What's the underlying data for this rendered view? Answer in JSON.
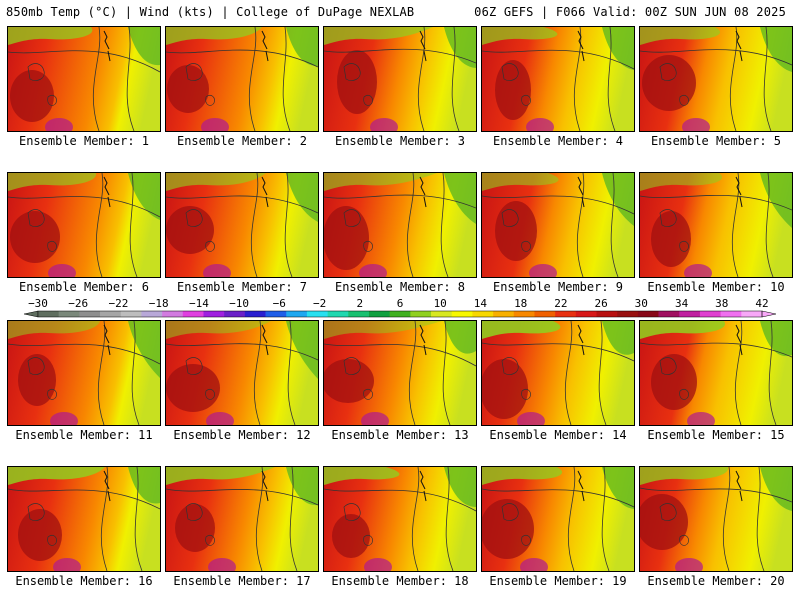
{
  "header": {
    "left": "850mb Temp (°C) | Wind (kts) | College of DuPage NEXLAB",
    "right": "06Z GEFS | F066 Valid: 00Z SUN JUN 08 2025"
  },
  "members": [
    {
      "label": "Ensemble Member: 1"
    },
    {
      "label": "Ensemble Member: 2"
    },
    {
      "label": "Ensemble Member: 3"
    },
    {
      "label": "Ensemble Member: 4"
    },
    {
      "label": "Ensemble Member: 5"
    },
    {
      "label": "Ensemble Member: 6"
    },
    {
      "label": "Ensemble Member: 7"
    },
    {
      "label": "Ensemble Member: 8"
    },
    {
      "label": "Ensemble Member: 9"
    },
    {
      "label": "Ensemble Member: 10"
    },
    {
      "label": "Ensemble Member: 11"
    },
    {
      "label": "Ensemble Member: 12"
    },
    {
      "label": "Ensemble Member: 13"
    },
    {
      "label": "Ensemble Member: 14"
    },
    {
      "label": "Ensemble Member: 15"
    },
    {
      "label": "Ensemble Member: 16"
    },
    {
      "label": "Ensemble Member: 17"
    },
    {
      "label": "Ensemble Member: 18"
    },
    {
      "label": "Ensemble Member: 19"
    },
    {
      "label": "Ensemble Member: 20"
    }
  ],
  "colorbar": {
    "ticks": [
      "−30",
      "−26",
      "−22",
      "−18",
      "−14",
      "−10",
      "−6",
      "−2",
      "2",
      "6",
      "10",
      "14",
      "18",
      "22",
      "26",
      "30",
      "34",
      "38",
      "42"
    ],
    "colors": [
      "#5f6e5f",
      "#7a887a",
      "#8e8e8e",
      "#a6a6a6",
      "#bdbdbd",
      "#b8a8d8",
      "#d27be0",
      "#e040e0",
      "#a020e0",
      "#6a20c8",
      "#2a1fd0",
      "#1f5ee8",
      "#1fa8f0",
      "#28e0f0",
      "#20d8b0",
      "#18c070",
      "#10a040",
      "#40b020",
      "#90d020",
      "#d8e820",
      "#f8f800",
      "#f8d800",
      "#f8b000",
      "#f88800",
      "#f06000",
      "#e83010",
      "#d81818",
      "#b81010",
      "#981010",
      "#880818",
      "#a01060",
      "#c020a0",
      "#e040d0",
      "#f070f0",
      "#f8a8f8"
    ]
  }
}
